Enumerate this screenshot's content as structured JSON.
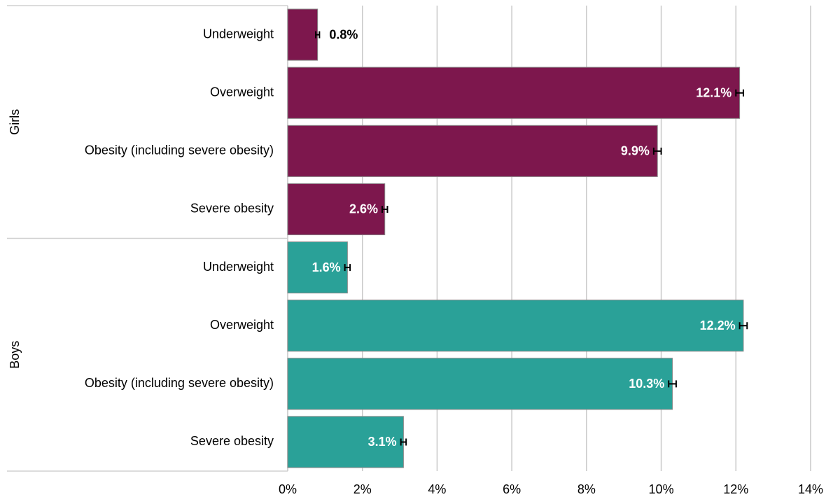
{
  "chart_data": {
    "type": "bar",
    "orientation": "horizontal",
    "xlim": [
      0,
      14
    ],
    "xticks": [
      {
        "value": 0,
        "label": "0%"
      },
      {
        "value": 2,
        "label": "2%"
      },
      {
        "value": 4,
        "label": "4%"
      },
      {
        "value": 6,
        "label": "6%"
      },
      {
        "value": 8,
        "label": "8%"
      },
      {
        "value": 10,
        "label": "10%"
      },
      {
        "value": 12,
        "label": "12%"
      },
      {
        "value": 14,
        "label": "14%"
      }
    ],
    "grid": true,
    "series": [
      {
        "name": "Girls",
        "color": "#7d174d",
        "categories": [
          "Underweight",
          "Overweight",
          "Obesity (including severe obesity)",
          "Severe obesity"
        ],
        "values": [
          0.8,
          12.1,
          9.9,
          2.6
        ],
        "value_labels": [
          "0.8%",
          "12.1%",
          "9.9%",
          "2.6%"
        ],
        "errors": [
          0.05,
          0.1,
          0.1,
          0.07
        ]
      },
      {
        "name": "Boys",
        "color": "#2aa198",
        "categories": [
          "Underweight",
          "Overweight",
          "Obesity (including severe obesity)",
          "Severe obesity"
        ],
        "values": [
          1.6,
          12.2,
          10.3,
          3.1
        ],
        "value_labels": [
          "1.6%",
          "12.2%",
          "10.3%",
          "3.1%"
        ],
        "errors": [
          0.07,
          0.1,
          0.1,
          0.07
        ]
      }
    ]
  }
}
